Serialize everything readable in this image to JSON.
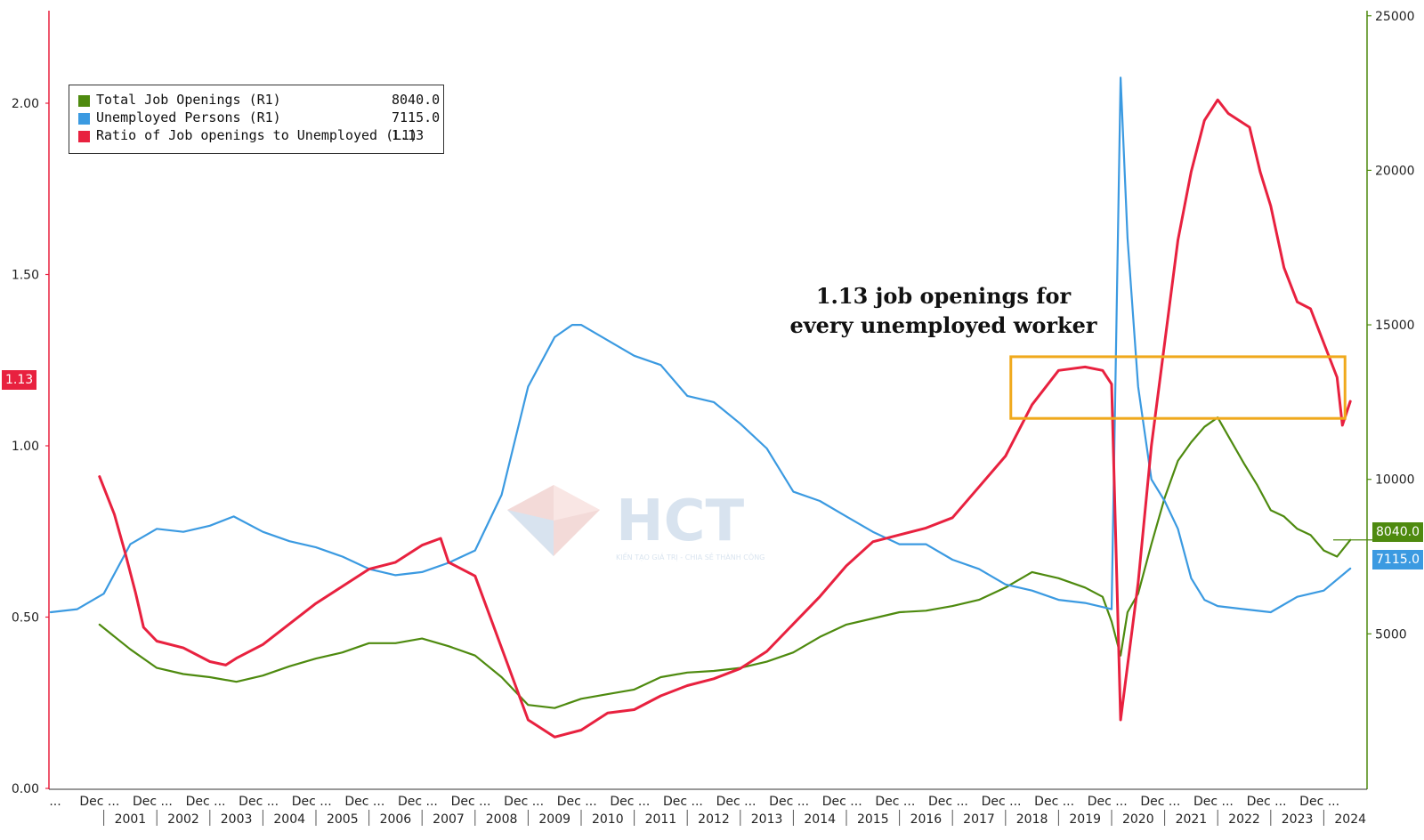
{
  "chart_data": {
    "type": "line",
    "legend_position": "top-left",
    "annotation": "1.13 job openings for every unemployed worker",
    "left_axis": {
      "ticks": [
        "2.00",
        "1.50",
        "1.00",
        "0.50",
        "0.00"
      ],
      "ylim": [
        0,
        2.2
      ]
    },
    "right_axis": {
      "ticks": [
        "25000",
        "20000",
        "15000",
        "10000",
        "5000"
      ],
      "ylim": [
        0,
        25000
      ]
    },
    "x_tick_labels": [
      "Dec ...",
      "Dec ...",
      "Dec ...",
      "Dec ...",
      "Dec ...",
      "Dec ...",
      "Dec ...",
      "Dec ...",
      "Dec ...",
      "Dec ...",
      "Dec ...",
      "Dec ...",
      "Dec ...",
      "Dec ...",
      "Dec ...",
      "Dec ...",
      "Dec ...",
      "Dec ...",
      "Dec ...",
      "Dec ...",
      "Dec ...",
      "Dec ...",
      "Dec ...",
      "Dec ..."
    ],
    "x_first_label": "...",
    "x_years": [
      "2001",
      "2002",
      "2003",
      "2004",
      "2005",
      "2006",
      "2007",
      "2008",
      "2009",
      "2010",
      "2011",
      "2012",
      "2013",
      "2014",
      "2015",
      "2016",
      "2017",
      "2018",
      "2019",
      "2020",
      "2021",
      "2022",
      "2023",
      "2024"
    ],
    "highlight_box": {
      "x_range": [
        2018.1,
        2024.4
      ],
      "y_range_left": [
        1.08,
        1.26
      ]
    },
    "series": [
      {
        "name": "Total Job Openings (R1)",
        "last_value": "8040.0",
        "color": "#4e8a0f",
        "axis": "right",
        "x": [
          2000.92,
          2001.5,
          2002.0,
          2002.5,
          2003.0,
          2003.5,
          2004.0,
          2004.5,
          2005.0,
          2005.5,
          2006.0,
          2006.5,
          2007.0,
          2007.5,
          2008.0,
          2008.5,
          2009.0,
          2009.5,
          2010.0,
          2010.5,
          2011.0,
          2011.5,
          2012.0,
          2012.5,
          2013.0,
          2013.5,
          2014.0,
          2014.5,
          2015.0,
          2015.5,
          2016.0,
          2016.5,
          2017.0,
          2017.5,
          2018.0,
          2018.5,
          2019.0,
          2019.5,
          2019.83,
          2020.0,
          2020.17,
          2020.3,
          2020.5,
          2020.75,
          2021.0,
          2021.25,
          2021.5,
          2021.75,
          2022.0,
          2022.2,
          2022.5,
          2022.75,
          2023.0,
          2023.25,
          2023.5,
          2023.75,
          2024.0,
          2024.25,
          2024.5
        ],
        "values": [
          5300,
          4500,
          3900,
          3700,
          3600,
          3450,
          3650,
          3950,
          4200,
          4400,
          4700,
          4700,
          4850,
          4600,
          4300,
          3600,
          2700,
          2600,
          2900,
          3050,
          3200,
          3600,
          3750,
          3800,
          3900,
          4100,
          4400,
          4900,
          5300,
          5500,
          5700,
          5750,
          5900,
          6100,
          6500,
          7000,
          6800,
          6500,
          6200,
          5400,
          4300,
          5700,
          6300,
          7900,
          9400,
          10600,
          11200,
          11700,
          12000,
          11400,
          10500,
          9800,
          9000,
          8800,
          8400,
          8200,
          7700,
          7500,
          8040
        ]
      },
      {
        "name": "Unemployed Persons (R1)",
        "last_value": "7115.0",
        "color": "#3b9ae1",
        "axis": "right",
        "x": [
          2000.0,
          2000.5,
          2001.0,
          2001.5,
          2002.0,
          2002.5,
          2003.0,
          2003.45,
          2004.0,
          2004.5,
          2005.0,
          2005.5,
          2006.0,
          2006.5,
          2007.0,
          2007.5,
          2008.0,
          2008.5,
          2009.0,
          2009.5,
          2009.83,
          2010.0,
          2010.5,
          2011.0,
          2011.5,
          2012.0,
          2012.5,
          2013.0,
          2013.5,
          2014.0,
          2014.5,
          2015.0,
          2015.5,
          2016.0,
          2016.5,
          2017.0,
          2017.5,
          2018.0,
          2018.5,
          2019.0,
          2019.5,
          2020.0,
          2020.17,
          2020.3,
          2020.5,
          2020.75,
          2021.0,
          2021.25,
          2021.5,
          2021.75,
          2022.0,
          2022.5,
          2023.0,
          2023.5,
          2024.0,
          2024.5
        ],
        "values": [
          5700,
          5800,
          6300,
          7900,
          8400,
          8300,
          8500,
          8800,
          8300,
          8000,
          7800,
          7500,
          7100,
          6900,
          7000,
          7300,
          7700,
          9500,
          13000,
          14600,
          15000,
          15000,
          14500,
          14000,
          13700,
          12700,
          12500,
          11800,
          11000,
          9600,
          9300,
          8800,
          8300,
          7900,
          7900,
          7400,
          7100,
          6600,
          6400,
          6100,
          6000,
          5800,
          23000,
          17800,
          13000,
          10000,
          9300,
          8400,
          6800,
          6100,
          5900,
          5800,
          5700,
          6200,
          6400,
          7115
        ]
      },
      {
        "name": "Ratio of Job openings to Unemployed (L1)",
        "last_value": "1.13",
        "color": "#e8213f",
        "axis": "left",
        "x": [
          2000.92,
          2001.2,
          2001.4,
          2001.6,
          2001.75,
          2002.0,
          2002.5,
          2003.0,
          2003.3,
          2003.5,
          2004.0,
          2004.5,
          2005.0,
          2005.5,
          2006.0,
          2006.5,
          2007.0,
          2007.35,
          2007.5,
          2008.0,
          2008.5,
          2009.0,
          2009.5,
          2010.0,
          2010.5,
          2011.0,
          2011.5,
          2012.0,
          2012.5,
          2013.0,
          2013.5,
          2014.0,
          2014.5,
          2015.0,
          2015.5,
          2016.0,
          2016.5,
          2017.0,
          2017.5,
          2018.0,
          2018.5,
          2019.0,
          2019.5,
          2019.83,
          2020.0,
          2020.17,
          2020.5,
          2020.75,
          2021.0,
          2021.25,
          2021.5,
          2021.75,
          2022.0,
          2022.2,
          2022.4,
          2022.6,
          2022.8,
          2023.0,
          2023.25,
          2023.5,
          2023.75,
          2024.0,
          2024.25,
          2024.35,
          2024.5
        ],
        "values": [
          0.91,
          0.8,
          0.69,
          0.57,
          0.47,
          0.43,
          0.41,
          0.37,
          0.36,
          0.38,
          0.42,
          0.48,
          0.54,
          0.59,
          0.64,
          0.66,
          0.71,
          0.73,
          0.66,
          0.62,
          0.41,
          0.2,
          0.15,
          0.17,
          0.22,
          0.23,
          0.27,
          0.3,
          0.32,
          0.35,
          0.4,
          0.48,
          0.56,
          0.65,
          0.72,
          0.74,
          0.76,
          0.79,
          0.88,
          0.97,
          1.12,
          1.22,
          1.23,
          1.22,
          1.18,
          0.2,
          0.6,
          1.0,
          1.3,
          1.6,
          1.8,
          1.95,
          2.01,
          1.97,
          1.95,
          1.93,
          1.8,
          1.7,
          1.52,
          1.42,
          1.4,
          1.3,
          1.2,
          1.06,
          1.13
        ]
      }
    ]
  },
  "watermark": {
    "brand": "HCT",
    "tagline": "KIẾN TẠO GIÁ TRỊ - CHIA SẺ THÀNH CÔNG"
  }
}
